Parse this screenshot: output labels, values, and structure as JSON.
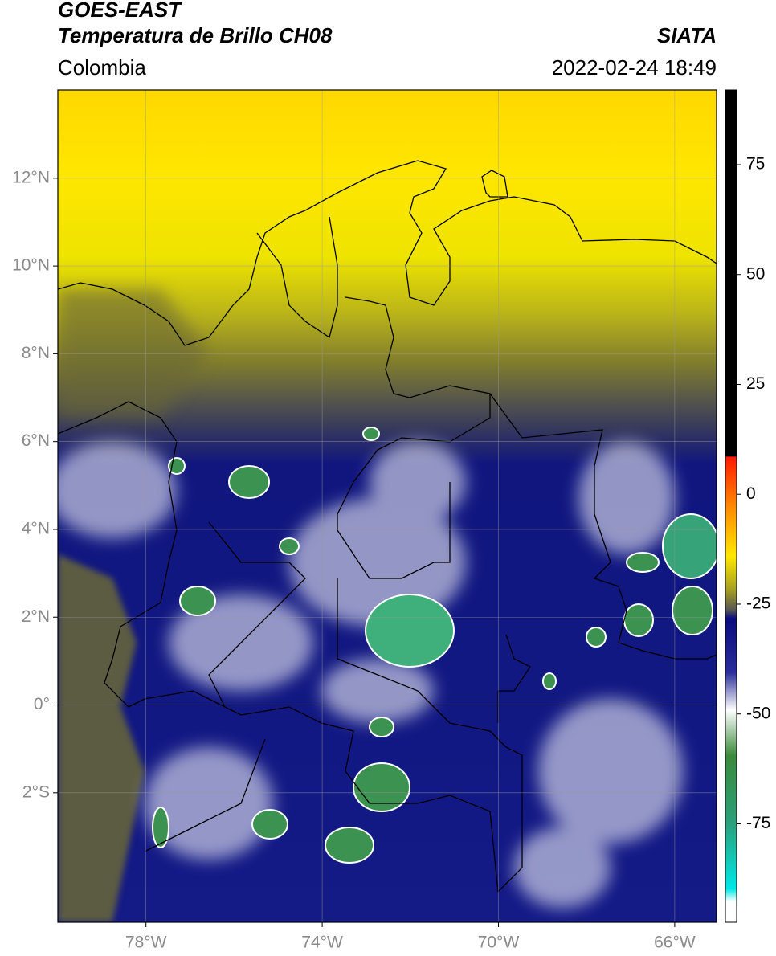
{
  "header": {
    "title": "GOES-EAST",
    "subtitle": "Temperatura de Brillo CH08",
    "source": "SIATA",
    "region": "Colombia",
    "datetime": "2022-02-24 18:49"
  },
  "map": {
    "xlim": [
      -80,
      -65.05
    ],
    "ylim": [
      -4.95,
      14.01
    ],
    "xticks": [
      {
        "value": -78,
        "label": "78°W"
      },
      {
        "value": -74,
        "label": "74°W"
      },
      {
        "value": -70,
        "label": "70°W"
      },
      {
        "value": -66,
        "label": "66°W"
      }
    ],
    "yticks": [
      {
        "value": 12,
        "label": "12°N"
      },
      {
        "value": 10,
        "label": "10°N"
      },
      {
        "value": 8,
        "label": "8°N"
      },
      {
        "value": 6,
        "label": "6°N"
      },
      {
        "value": 4,
        "label": "4°N"
      },
      {
        "value": 2,
        "label": "2°N"
      },
      {
        "value": 0,
        "label": "0°"
      },
      {
        "value": -2,
        "label": "2°S"
      }
    ],
    "grid": true
  },
  "colorbar": {
    "lim": [
      -97.4,
      92
    ],
    "ticks": [
      75,
      50,
      25,
      0,
      -25,
      -50,
      -75
    ]
  }
}
